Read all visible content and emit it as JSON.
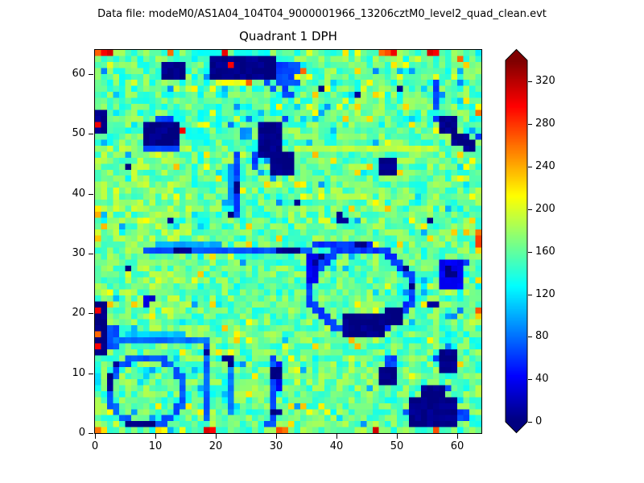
{
  "header": {
    "datafile_label": "Data file: modeM0/AS1A04_104T04_9000001966_13206cztM0_level2_quad_clean.evt"
  },
  "chart_data": {
    "type": "heatmap",
    "title": "Quadrant 1 DPH",
    "grid_size": 64,
    "xlim": [
      0,
      64
    ],
    "ylim": [
      0,
      64
    ],
    "x_ticks": [
      0,
      10,
      20,
      30,
      40,
      50,
      60
    ],
    "y_ticks": [
      0,
      10,
      20,
      30,
      40,
      50,
      60
    ],
    "colormap": "jet",
    "colorbar": {
      "vmin": 0,
      "vmax": 340,
      "ticks": [
        0,
        40,
        80,
        120,
        160,
        200,
        240,
        280,
        320
      ],
      "extend": "both",
      "extend_over_color": "#800000",
      "extend_under_color": "#000080"
    },
    "field": {
      "base": 152,
      "noise_amp": 28,
      "seed": 42,
      "module_grid": 16,
      "module_offsets": [
        [
          8,
          5,
          12,
          5
        ],
        [
          15,
          8,
          8,
          5
        ],
        [
          18,
          5,
          10,
          10
        ],
        [
          5,
          0,
          8,
          5
        ]
      ]
    },
    "features": [
      {
        "t": "hline",
        "y": 47,
        "x1": 33,
        "x2": 56,
        "v": 190
      },
      {
        "t": "rect",
        "x": 11,
        "y": 59,
        "w": 4,
        "h": 3,
        "v": 2
      },
      {
        "t": "rect",
        "x": 19,
        "y": 59,
        "w": 11,
        "h": 4,
        "v": 2
      },
      {
        "t": "rect",
        "x": 30,
        "y": 58,
        "w": 4,
        "h": 4,
        "v": 65
      },
      {
        "t": "pts",
        "v": 65,
        "list": [
          [
            31,
            56
          ],
          [
            32,
            56
          ],
          [
            31,
            57
          ],
          [
            29,
            57
          ],
          [
            28,
            58
          ]
        ]
      },
      {
        "t": "pt",
        "x": 22,
        "y": 61,
        "v": 305
      },
      {
        "t": "hline",
        "y": 58,
        "x1": 20,
        "x2": 24,
        "v": 210
      },
      {
        "t": "pt",
        "x": 25,
        "y": 58,
        "v": 265
      },
      {
        "t": "pt",
        "x": 19,
        "y": 57,
        "v": 210
      },
      {
        "t": "pt",
        "x": 34,
        "y": 60,
        "v": 265
      },
      {
        "t": "pt",
        "x": 33,
        "y": 59,
        "v": 210
      },
      {
        "t": "rect",
        "x": 0,
        "y": 50,
        "w": 2,
        "h": 4,
        "v": 2
      },
      {
        "t": "pt",
        "x": 0,
        "y": 51,
        "v": 305
      },
      {
        "t": "rect",
        "x": 8,
        "y": 48,
        "w": 6,
        "h": 4,
        "v": 2
      },
      {
        "t": "rect",
        "x": 10,
        "y": 52,
        "w": 3,
        "h": 1,
        "v": 65
      },
      {
        "t": "hline",
        "y": 47,
        "x1": 8,
        "x2": 13,
        "v": 65
      },
      {
        "t": "pt",
        "x": 14,
        "y": 50,
        "v": 305
      },
      {
        "t": "rect",
        "x": 27,
        "y": 46,
        "w": 4,
        "h": 6,
        "v": 2
      },
      {
        "t": "rect",
        "x": 29,
        "y": 43,
        "w": 4,
        "h": 4,
        "v": 2
      },
      {
        "t": "rect",
        "x": 26,
        "y": 44,
        "w": 1,
        "h": 3,
        "v": 65
      },
      {
        "t": "rect",
        "x": 24,
        "y": 49,
        "w": 2,
        "h": 2,
        "v": 95
      },
      {
        "t": "pt",
        "x": 31,
        "y": 52,
        "v": 65
      },
      {
        "t": "vline",
        "x": 23,
        "y1": 36,
        "y2": 46,
        "v": 65
      },
      {
        "t": "vline",
        "x": 22,
        "y1": 38,
        "y2": 44,
        "v": 95
      },
      {
        "t": "pts",
        "v": 2,
        "list": [
          [
            23,
            40
          ],
          [
            23,
            41
          ],
          [
            22,
            36
          ]
        ]
      },
      {
        "t": "rect",
        "x": 57,
        "y": 50,
        "w": 3,
        "h": 3,
        "v": 2
      },
      {
        "t": "rect",
        "x": 59,
        "y": 48,
        "w": 3,
        "h": 2,
        "v": 2
      },
      {
        "t": "rect",
        "x": 61,
        "y": 47,
        "w": 2,
        "h": 2,
        "v": 2
      },
      {
        "t": "pt",
        "x": 56,
        "y": 52,
        "v": 65
      },
      {
        "t": "pt",
        "x": 63,
        "y": 49,
        "v": 65
      },
      {
        "t": "pt",
        "x": 63,
        "y": 53,
        "v": 265
      },
      {
        "t": "pt",
        "x": 63,
        "y": 54,
        "v": 210
      },
      {
        "t": "vline",
        "x": 56,
        "y1": 54,
        "y2": 58,
        "v": 65
      },
      {
        "t": "pt",
        "x": 57,
        "y": 56,
        "v": 95
      },
      {
        "t": "pt",
        "x": 56,
        "y": 59,
        "v": 210
      },
      {
        "t": "rect",
        "x": 47,
        "y": 43,
        "w": 3,
        "h": 3,
        "v": 2
      },
      {
        "t": "pts",
        "v": 2,
        "list": [
          [
            40,
            35
          ],
          [
            41,
            35
          ],
          [
            40,
            36
          ],
          [
            33,
            38
          ],
          [
            12,
            35
          ],
          [
            5,
            44
          ],
          [
            55,
            35
          ],
          [
            43,
            56
          ],
          [
            37,
            57
          ],
          [
            50,
            57
          ],
          [
            5,
            27
          ]
        ]
      },
      {
        "t": "ring",
        "cx": 44,
        "cy": 24,
        "rx": 8.5,
        "ry": 7,
        "th": 1.4,
        "v": 60
      },
      {
        "t": "rect",
        "x": 41,
        "y": 16,
        "w": 7,
        "h": 4,
        "v": 2
      },
      {
        "t": "rect",
        "x": 48,
        "y": 18,
        "w": 3,
        "h": 3,
        "v": 2
      },
      {
        "t": "rect",
        "x": 35,
        "y": 25,
        "w": 2,
        "h": 5,
        "v": 40
      },
      {
        "t": "hline",
        "y": 31,
        "x1": 36,
        "x2": 44,
        "v": 60
      },
      {
        "t": "pts",
        "v": 2,
        "list": [
          [
            36,
            28
          ],
          [
            37,
            29
          ],
          [
            52,
            24
          ],
          [
            51,
            27
          ],
          [
            44,
            31
          ],
          [
            43,
            31
          ]
        ]
      },
      {
        "t": "hline",
        "y": 30,
        "x1": 8,
        "x2": 35,
        "v": 70
      },
      {
        "t": "hline",
        "y": 31,
        "x1": 10,
        "x2": 20,
        "v": 100
      },
      {
        "t": "pts",
        "v": 2,
        "list": [
          [
            13,
            30
          ],
          [
            14,
            30
          ],
          [
            15,
            30
          ],
          [
            30,
            30
          ],
          [
            31,
            30
          ],
          [
            32,
            30
          ],
          [
            33,
            30
          ]
        ]
      },
      {
        "t": "rect",
        "x": 57,
        "y": 24,
        "w": 4,
        "h": 5,
        "v": 40
      },
      {
        "t": "pts",
        "v": 2,
        "list": [
          [
            58,
            26
          ],
          [
            59,
            26
          ],
          [
            58,
            27
          ],
          [
            55,
            21
          ],
          [
            56,
            21
          ]
        ]
      },
      {
        "t": "pt",
        "x": 61,
        "y": 28,
        "v": 65
      },
      {
        "t": "rect",
        "x": 0,
        "y": 13,
        "w": 2,
        "h": 9,
        "v": 2
      },
      {
        "t": "pt",
        "x": 0,
        "y": 14,
        "v": 305
      },
      {
        "t": "pt",
        "x": 0,
        "y": 16,
        "v": 265
      },
      {
        "t": "pt",
        "x": 0,
        "y": 20,
        "v": 305
      },
      {
        "t": "rect",
        "x": 2,
        "y": 14,
        "w": 2,
        "h": 4,
        "v": 65
      },
      {
        "t": "hline",
        "y": 15,
        "x1": 3,
        "x2": 18,
        "v": 80
      },
      {
        "t": "hline",
        "y": 16,
        "x1": 5,
        "x2": 14,
        "v": 110
      },
      {
        "t": "ring",
        "cx": 8.5,
        "cy": 7,
        "rx": 6.3,
        "ry": 5.8,
        "th": 1.3,
        "v": 70
      },
      {
        "t": "rect",
        "x": 5,
        "y": 1,
        "w": 5,
        "h": 1,
        "v": 2
      },
      {
        "t": "pts",
        "v": 2,
        "list": [
          [
            2,
            7
          ],
          [
            2,
            8
          ],
          [
            2,
            9
          ],
          [
            3,
            11
          ]
        ]
      },
      {
        "t": "vline",
        "x": 18,
        "y1": 2,
        "y2": 14,
        "v": 75
      },
      {
        "t": "pt",
        "x": 18,
        "y": 13,
        "v": 2
      },
      {
        "t": "vline",
        "x": 22,
        "y1": 3,
        "y2": 12,
        "v": 85
      },
      {
        "t": "pts",
        "v": 2,
        "list": [
          [
            22,
            11
          ],
          [
            22,
            12
          ],
          [
            21,
            12
          ]
        ]
      },
      {
        "t": "vline",
        "x": 29,
        "y1": 1,
        "y2": 12,
        "v": 70
      },
      {
        "t": "vline",
        "x": 30,
        "y1": 7,
        "y2": 11,
        "v": 40
      },
      {
        "t": "pts",
        "v": 2,
        "list": [
          [
            29,
            9
          ],
          [
            29,
            10
          ],
          [
            30,
            9
          ],
          [
            30,
            10
          ],
          [
            29,
            3
          ],
          [
            30,
            3
          ]
        ]
      },
      {
        "t": "pt",
        "x": 28,
        "y": 1,
        "v": 65
      },
      {
        "t": "rect",
        "x": 52,
        "y": 1,
        "w": 8,
        "h": 5,
        "v": 2
      },
      {
        "t": "rect",
        "x": 54,
        "y": 6,
        "w": 4,
        "h": 2,
        "v": 2
      },
      {
        "t": "rect",
        "x": 60,
        "y": 2,
        "w": 2,
        "h": 2,
        "v": 65
      },
      {
        "t": "pt",
        "x": 51,
        "y": 3,
        "v": 65
      },
      {
        "t": "pt",
        "x": 58,
        "y": 7,
        "v": 65
      },
      {
        "t": "rect",
        "x": 47,
        "y": 8,
        "w": 3,
        "h": 3,
        "v": 2
      },
      {
        "t": "rect",
        "x": 48,
        "y": 11,
        "w": 2,
        "h": 2,
        "v": 65
      },
      {
        "t": "rect",
        "x": 57,
        "y": 10,
        "w": 3,
        "h": 4,
        "v": 2
      },
      {
        "t": "pt",
        "x": 56,
        "y": 12,
        "v": 65
      },
      {
        "t": "pts",
        "v": 30,
        "list": [
          [
            8,
            22
          ],
          [
            9,
            22
          ],
          [
            8,
            21
          ]
        ]
      },
      {
        "t": "pts",
        "v": 265,
        "list": [
          [
            0,
            63
          ],
          [
            12,
            63
          ],
          [
            47,
            63
          ],
          [
            48,
            63
          ],
          [
            60,
            62
          ],
          [
            0,
            0
          ],
          [
            30,
            0
          ],
          [
            31,
            0
          ],
          [
            56,
            0
          ]
        ]
      },
      {
        "t": "pts",
        "v": 305,
        "list": [
          [
            1,
            63
          ],
          [
            2,
            63
          ],
          [
            21,
            63
          ],
          [
            49,
            63
          ],
          [
            55,
            63
          ],
          [
            56,
            63
          ],
          [
            18,
            0
          ],
          [
            19,
            0
          ],
          [
            46,
            0
          ]
        ]
      },
      {
        "t": "pt",
        "x": 1,
        "y": 0,
        "v": 230
      },
      {
        "t": "pts",
        "v": 285,
        "list": [
          [
            63,
            31
          ],
          [
            63,
            32
          ]
        ]
      },
      {
        "t": "pt",
        "x": 63,
        "y": 33,
        "v": 250
      },
      {
        "t": "pt",
        "x": 63,
        "y": 30,
        "v": 220
      },
      {
        "t": "pt",
        "x": 63,
        "y": 20,
        "v": 265
      },
      {
        "t": "pt",
        "x": 63,
        "y": 19,
        "v": 225
      }
    ]
  }
}
